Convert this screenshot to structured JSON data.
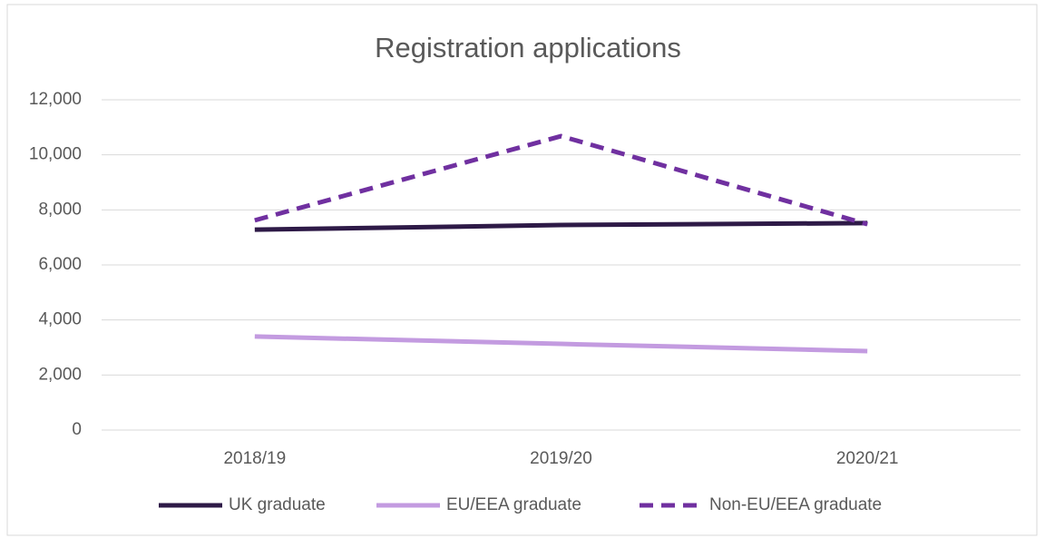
{
  "chart_data": {
    "type": "line",
    "title": "Registration applications",
    "categories": [
      "2018/19",
      "2019/20",
      "2020/21"
    ],
    "series": [
      {
        "name": "UK graduate",
        "color": "#2e1a47",
        "dashed": false,
        "values": [
          7280,
          7450,
          7520
        ]
      },
      {
        "name": "EU/EEA graduate",
        "color": "#c39be0",
        "dashed": false,
        "values": [
          3400,
          3130,
          2870
        ]
      },
      {
        "name": "Non-EU/EEA graduate",
        "color": "#7030a0",
        "dashed": true,
        "values": [
          7620,
          10680,
          7480
        ]
      }
    ],
    "ylim": [
      0,
      12000
    ],
    "yticks": [
      0,
      {
        "value": 2000,
        "label": "2,000"
      },
      {
        "value": 4000,
        "label": "4,000"
      },
      {
        "value": 6000,
        "label": "6,000"
      },
      {
        "value": 8000,
        "label": "8,000"
      },
      {
        "value": 10000,
        "label": "10,000"
      },
      {
        "value": 12000,
        "label": "12,000"
      }
    ],
    "grid": true,
    "legend": "bottom"
  }
}
